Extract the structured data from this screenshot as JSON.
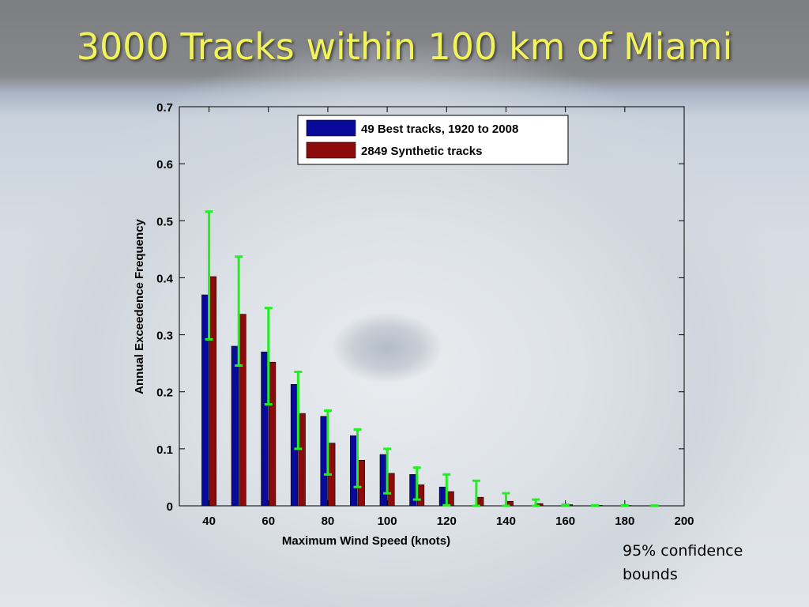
{
  "slide": {
    "title": "3000 Tracks within 100 km of Miami",
    "note": "95% confidence bounds"
  },
  "colors": {
    "title": "#f2f25a",
    "series_best": "#0a0a9a",
    "series_synthetic": "#8c0c0c",
    "error_bars": "#22ee22"
  },
  "chart_data": {
    "type": "bar",
    "xlabel": "Maximum Wind Speed (knots)",
    "ylabel": "Annual Exceedence Frequency",
    "xlim": [
      30,
      200
    ],
    "ylim": [
      0,
      0.7
    ],
    "x_ticks": [
      40,
      60,
      80,
      100,
      120,
      140,
      160,
      180,
      200
    ],
    "y_ticks": [
      0,
      0.1,
      0.2,
      0.3,
      0.4,
      0.5,
      0.6,
      0.7
    ],
    "legend_position": "top",
    "grid": false,
    "x": [
      40,
      50,
      60,
      70,
      80,
      90,
      100,
      110,
      120,
      130,
      140,
      150,
      160,
      170,
      180,
      190
    ],
    "series": [
      {
        "name": "49 Best tracks, 1920 to 2008",
        "color": "#0a0a9a",
        "values": [
          0.37,
          0.28,
          0.27,
          0.213,
          0.157,
          0.123,
          0.09,
          0.055,
          0.033,
          0,
          0,
          0,
          0,
          0,
          0,
          0
        ]
      },
      {
        "name": "2849 Synthetic tracks",
        "color": "#8c0c0c",
        "values": [
          0.402,
          0.336,
          0.252,
          0.162,
          0.11,
          0.08,
          0.057,
          0.037,
          0.025,
          0.015,
          0.008,
          0.004,
          0.002,
          0.0008,
          0.0005,
          0.0002
        ]
      }
    ],
    "error_bars": {
      "name": "95% confidence bounds",
      "lower": [
        0.292,
        0.246,
        0.178,
        0.1,
        0.055,
        0.033,
        0.022,
        0.011,
        0.001,
        0,
        0,
        0,
        0,
        0,
        0,
        0
      ],
      "upper": [
        0.516,
        0.437,
        0.347,
        0.235,
        0.167,
        0.134,
        0.1,
        0.067,
        0.055,
        0.044,
        0.022,
        0.011,
        0.002,
        0.001,
        0.001,
        0.0005
      ]
    }
  }
}
